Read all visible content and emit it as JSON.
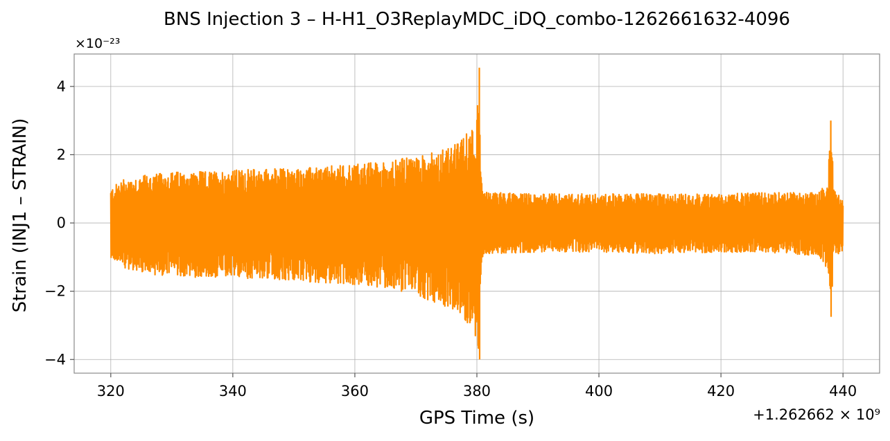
{
  "chart_data": {
    "type": "line",
    "title": "BNS Injection 3 – H-H1_O3ReplayMDC_iDQ_combo-1262661632-4096",
    "xlabel": "GPS Time (s)",
    "ylabel": "Strain (INJ1 – STRAIN)",
    "x_offset_label": "+1.262662 × 10⁹",
    "y_multiplier_label": "×10⁻²³",
    "xlim": [
      314,
      446
    ],
    "ylim": [
      -4.4,
      4.95
    ],
    "x_ticks": [
      320,
      340,
      360,
      380,
      400,
      420,
      440
    ],
    "x_tick_labels": [
      "320",
      "340",
      "360",
      "380",
      "400",
      "420",
      "440"
    ],
    "y_ticks": [
      -4,
      -2,
      0,
      2,
      4
    ],
    "y_tick_labels": [
      "−4",
      "−2",
      "0",
      "2",
      "4"
    ],
    "grid": true,
    "line_color": "#ff8c00",
    "series": [
      {
        "x": [
          320,
          322,
          326,
          330,
          335,
          340,
          345,
          350,
          355,
          360,
          365,
          370,
          374,
          377,
          379,
          380.0,
          380.4,
          380.6,
          381,
          383,
          390,
          400,
          410,
          420,
          430,
          436,
          437.5,
          438,
          438.5,
          440
        ],
        "upper": [
          1.0,
          1.3,
          1.4,
          1.5,
          1.5,
          1.55,
          1.6,
          1.6,
          1.65,
          1.75,
          1.8,
          1.95,
          2.1,
          2.35,
          2.8,
          3.2,
          4.55,
          1.5,
          0.9,
          0.9,
          0.85,
          0.85,
          0.85,
          0.85,
          0.9,
          0.9,
          1.2,
          3.0,
          1.0,
          0.7
        ],
        "lower": [
          -1.0,
          -1.3,
          -1.5,
          -1.55,
          -1.6,
          -1.6,
          -1.65,
          -1.7,
          -1.75,
          -1.8,
          -1.9,
          -2.1,
          -2.4,
          -2.7,
          -3.0,
          -3.4,
          -4.0,
          -1.6,
          -0.9,
          -0.9,
          -0.85,
          -0.85,
          -0.9,
          -0.85,
          -0.9,
          -0.95,
          -1.4,
          -2.7,
          -1.0,
          -0.8
        ]
      }
    ]
  }
}
